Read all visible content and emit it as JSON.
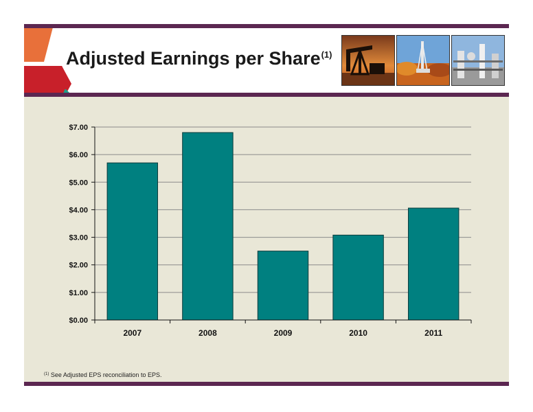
{
  "slide": {
    "title": "Adjusted Earnings per Share",
    "title_footnote_mark": "(1)",
    "footnote_mark": "(1)",
    "footnote_text": "See Adjusted EPS reconciliation to EPS."
  },
  "photos": [
    {
      "name": "oil-pumpjack-photo"
    },
    {
      "name": "drilling-rig-photo"
    },
    {
      "name": "processing-plant-photo"
    }
  ],
  "colors": {
    "bar": "#008080",
    "accent_purple": "#5c2751",
    "background": "#e9e7d7"
  },
  "chart_data": {
    "type": "bar",
    "title": "",
    "xlabel": "",
    "ylabel": "",
    "categories": [
      "2007",
      "2008",
      "2009",
      "2010",
      "2011"
    ],
    "values": [
      5.7,
      6.8,
      2.5,
      3.08,
      4.06
    ],
    "ylim": [
      0,
      7
    ],
    "yticks": [
      0,
      1,
      2,
      3,
      4,
      5,
      6,
      7
    ],
    "ytick_labels": [
      "$0.00",
      "$1.00",
      "$2.00",
      "$3.00",
      "$4.00",
      "$5.00",
      "$6.00",
      "$7.00"
    ],
    "grid": true,
    "legend": "none"
  }
}
